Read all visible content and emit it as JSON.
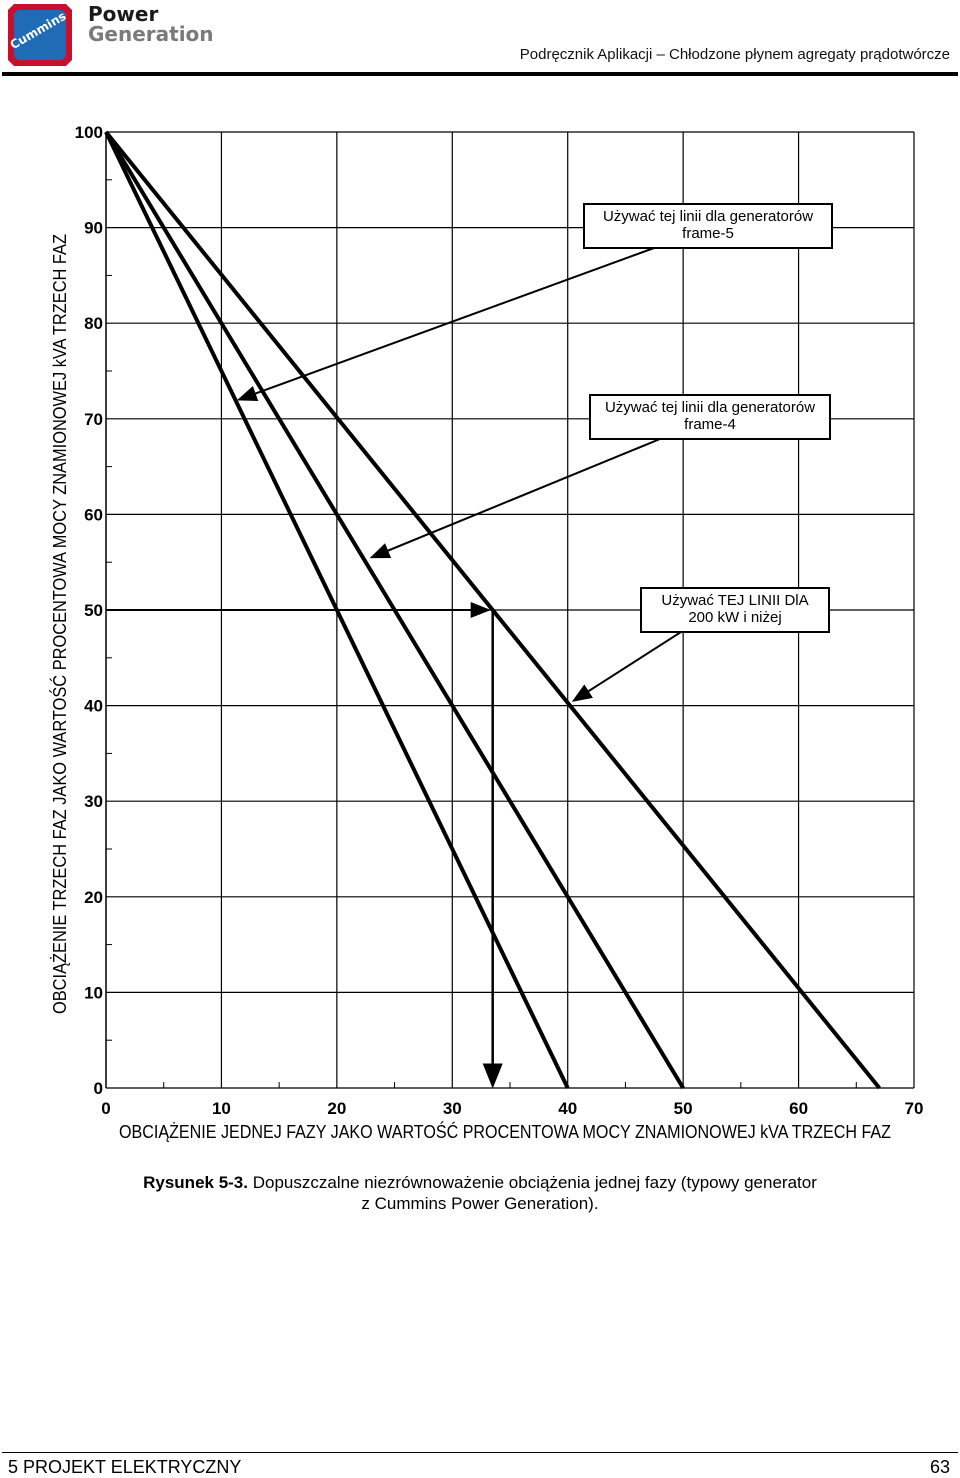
{
  "header": {
    "brand_logo": "Cummins",
    "brand_line1": "Power",
    "brand_line2": "Generation",
    "doc_title": "Podręcznik Aplikacji – Chłodzone płynem agregaty prądotwórcze",
    "colors": {
      "logo_red": "#c8102e",
      "logo_blue": "#1f6bb5",
      "brand_gray": "#7a7a7a"
    }
  },
  "chart_data": {
    "type": "line",
    "xlabel": "OBCIĄŻENIE JEDNEJ FAZY JAKO WARTOŚĆ PROCENTOWA MOCY ZNAMIONOWEJ kVA TRZECH FAZ",
    "ylabel": "OBCIĄŻENIE TRZECH FAZ JAKO WARTOŚĆ PROCENTOWA MOCY ZNAMIONOWEJ kVA TRZECH FAZ",
    "xlim": [
      0,
      70
    ],
    "ylim": [
      0,
      100
    ],
    "x_ticks": [
      "0",
      "10",
      "20",
      "30",
      "40",
      "50",
      "60",
      "70"
    ],
    "y_ticks": [
      "0",
      "10",
      "20",
      "30",
      "40",
      "50",
      "60",
      "70",
      "80",
      "90",
      "100"
    ],
    "grid": true,
    "series": [
      {
        "x": [
          0,
          40
        ],
        "y": [
          100,
          0
        ]
      },
      {
        "x": [
          0,
          50
        ],
        "y": [
          100,
          0
        ]
      },
      {
        "x": [
          0,
          67
        ],
        "y": [
          100,
          0
        ]
      }
    ],
    "example_path": {
      "x": [
        0,
        33.5,
        33.5
      ],
      "y": [
        50,
        50,
        0
      ]
    },
    "annotations": [
      {
        "line1": "Używać tej linii dla generatorów",
        "line2": "frame-5",
        "target": [
          11.5,
          72
        ]
      },
      {
        "line1": "Używać tej linii dla generatorów",
        "line2": "frame-4",
        "target": [
          23,
          55.5
        ]
      },
      {
        "line1": "Używać TEJ LINII DlA",
        "line2": "200 kW i niżej",
        "target": [
          40.5,
          40.5
        ]
      }
    ]
  },
  "caption": {
    "figure": "Rysunek 5-3.",
    "text": " Dopuszczalne niezrównoważenie obciążenia jednej fazy (typowy generator",
    "line2": "z Cummins Power Generation)."
  },
  "footer": {
    "section": "5  PROJEKT ELEKTRYCZNY",
    "page": "63"
  }
}
